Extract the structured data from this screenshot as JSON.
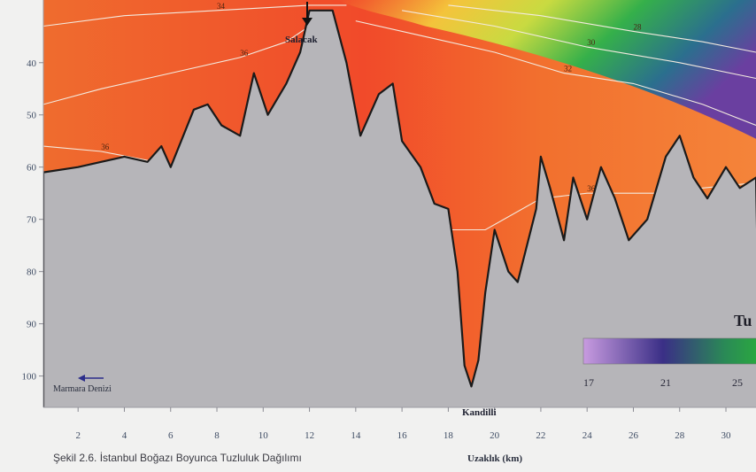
{
  "chart_data": {
    "type": "heatmap",
    "title_partial": "Tu",
    "xlabel": "Uzaklık (km)",
    "xlim": [
      0.5,
      31.3
    ],
    "ylim": [
      28,
      106
    ],
    "x_ticks": [
      2,
      4,
      6,
      8,
      10,
      12,
      14,
      16,
      18,
      20,
      22,
      24,
      26,
      28,
      30
    ],
    "y_ticks": [
      40,
      50,
      60,
      70,
      80,
      90,
      100
    ],
    "places": [
      {
        "name": "Salacak",
        "x": 12.3
      },
      {
        "name": "Kandilli",
        "x": 19.0
      },
      {
        "name": "Marmara Denizi",
        "x": 2.0
      }
    ],
    "bottom_profile": {
      "x": [
        0.5,
        2,
        3,
        4,
        5,
        5.6,
        6,
        7,
        7.6,
        8.2,
        9,
        9.6,
        10.2,
        11,
        11.6,
        12,
        13,
        13.6,
        14.2,
        15,
        15.6,
        16,
        16.8,
        17.4,
        18,
        18.4,
        18.7,
        19.0,
        19.3,
        19.6,
        20,
        20.6,
        21,
        21.8,
        22,
        22.4,
        23,
        23.4,
        24,
        24.6,
        25.2,
        25.8,
        26.6,
        27.4,
        28,
        28.6,
        29.2,
        30,
        30.6,
        31.3
      ],
      "depth": [
        61,
        60,
        59,
        58,
        59,
        56,
        60,
        49,
        48,
        52,
        54,
        42,
        50,
        44,
        38,
        30,
        30,
        40,
        54,
        46,
        44,
        55,
        60,
        67,
        68,
        80,
        98,
        102,
        97,
        84,
        72,
        80,
        82,
        68,
        58,
        64,
        74,
        62,
        70,
        60,
        66,
        74,
        70,
        58,
        54,
        62,
        66,
        60,
        64,
        62
      ]
    },
    "contours": [
      {
        "label": "34",
        "x": [
          0.5,
          4,
          8,
          12,
          13.6
        ],
        "depth": [
          33,
          31,
          30,
          29,
          29
        ]
      },
      {
        "label": "36",
        "x": [
          0.5,
          3,
          6,
          9,
          11,
          12
        ],
        "depth": [
          48,
          45,
          42,
          39,
          36,
          33
        ]
      },
      {
        "label": "36",
        "x": [
          0.5,
          3,
          6.5
        ],
        "depth": [
          56,
          57,
          60
        ]
      },
      {
        "label": "36",
        "x": [
          16.8,
          18,
          19.6,
          22,
          24,
          27,
          29,
          31.3
        ],
        "depth": [
          63,
          72,
          72,
          66,
          65,
          65,
          64,
          63
        ]
      },
      {
        "label": "32",
        "x": [
          14,
          17,
          20,
          23,
          26,
          29,
          31.3
        ],
        "depth": [
          32,
          35,
          38,
          42,
          44,
          48,
          52
        ]
      },
      {
        "label": "30",
        "x": [
          16,
          20,
          24,
          28,
          31.3
        ],
        "depth": [
          30,
          33,
          37,
          40,
          43
        ]
      },
      {
        "label": "28",
        "x": [
          18,
          22,
          26,
          29,
          31.3
        ],
        "depth": [
          29,
          31,
          34,
          36,
          38
        ]
      }
    ],
    "colorbar": {
      "labels": [
        17,
        21,
        25
      ],
      "colors": [
        "#c89be0",
        "#3a2f86",
        "#2a8a56",
        "#2aaa3e"
      ]
    }
  },
  "map": {
    "marmara_label": "Marmara Denizi",
    "salacak_label": "Salacak",
    "kandilli_label": "Kandilli"
  },
  "caption": "Şekil 2.6. İstanbul Boğazı Boyunca Tuzluluk Dağılımı"
}
